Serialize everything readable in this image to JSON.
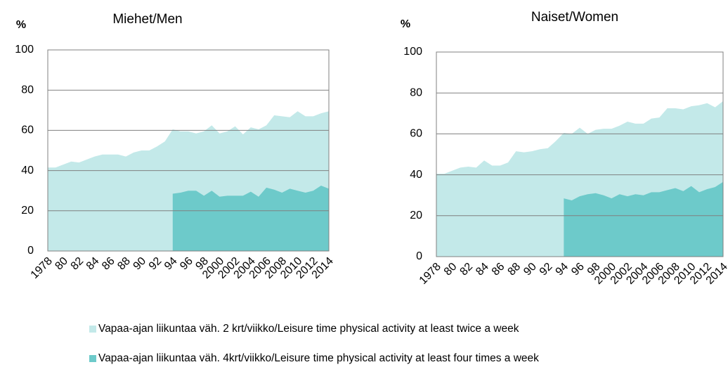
{
  "chart_data": [
    {
      "type": "area",
      "title": "Miehet/Men",
      "ylabel": "%",
      "categories": [
        "1978",
        null,
        "80",
        null,
        "82",
        null,
        "84",
        null,
        "86",
        null,
        "88",
        null,
        "90",
        null,
        "92",
        null,
        "94",
        null,
        "96",
        null,
        "98",
        null,
        "2000",
        null,
        "2002",
        null,
        "2004",
        null,
        "2006",
        null,
        "2008",
        null,
        "2010",
        null,
        "2012",
        null,
        "2014"
      ],
      "series": [
        {
          "name": "Vapaa-ajan liikuntaa väh. 2 krt/viikko/Leisure time physical activity at least twice a week",
          "color": "#c3e9e9",
          "values": [
            41.5,
            41.5,
            43,
            44.5,
            44,
            45.5,
            47,
            48,
            48,
            48,
            47,
            49,
            50,
            50,
            52,
            54.5,
            60.5,
            59.5,
            59.5,
            58.5,
            59.5,
            62.5,
            58.5,
            59.5,
            62,
            58,
            61.5,
            60.5,
            62.5,
            67.5,
            67,
            66.5,
            69.5,
            67,
            67,
            68.5,
            69.5
          ]
        },
        {
          "name": "Vapaa-ajan liikuntaa väh. 4krt/viikko/Leisure time physical activity at least four times a week",
          "color": "#6dcaca",
          "values": [
            null,
            null,
            null,
            null,
            null,
            null,
            null,
            null,
            null,
            null,
            null,
            null,
            null,
            null,
            null,
            null,
            28.5,
            29,
            30,
            30,
            27.5,
            30,
            27,
            27.5,
            27.5,
            27.5,
            29.5,
            27,
            31.5,
            30.5,
            29,
            31,
            30,
            29,
            30,
            32.5,
            31
          ]
        }
      ],
      "ylim": [
        0,
        100
      ],
      "yticks": [
        0,
        20,
        40,
        60,
        80,
        100
      ],
      "grid": true
    },
    {
      "type": "area",
      "title": "Naiset/Women",
      "ylabel": "%",
      "categories": [
        "1978",
        null,
        "80",
        null,
        "82",
        null,
        "84",
        null,
        "86",
        null,
        "88",
        null,
        "90",
        null,
        "92",
        null,
        "94",
        null,
        "96",
        null,
        "98",
        null,
        "2000",
        null,
        "2002",
        null,
        "2004",
        null,
        "2006",
        null,
        "2008",
        null,
        "2010",
        null,
        "2012",
        null,
        "2014"
      ],
      "series": [
        {
          "color": "#c3e9e9",
          "values": [
            40.5,
            40.5,
            42,
            43.5,
            44,
            43.5,
            47,
            44.5,
            44.5,
            46,
            51.5,
            51,
            51.5,
            52.5,
            53,
            56.5,
            60.5,
            60,
            63,
            60,
            62,
            62.5,
            62.5,
            64,
            66,
            65,
            65,
            67.5,
            68,
            72.5,
            72.5,
            72,
            73.5,
            74,
            75,
            73,
            76
          ]
        },
        {
          "color": "#6dcaca",
          "values": [
            null,
            null,
            null,
            null,
            null,
            null,
            null,
            null,
            null,
            null,
            null,
            null,
            null,
            null,
            null,
            null,
            28.5,
            27.5,
            29.5,
            30.5,
            31,
            30,
            28.5,
            30.5,
            29.5,
            30.5,
            30,
            31.5,
            31.5,
            32.5,
            33.5,
            32,
            34.5,
            31.5,
            33,
            34,
            36.5
          ]
        }
      ],
      "ylim": [
        0,
        100
      ],
      "yticks": [
        0,
        20,
        40,
        60,
        80,
        100
      ],
      "grid": true
    }
  ]
}
